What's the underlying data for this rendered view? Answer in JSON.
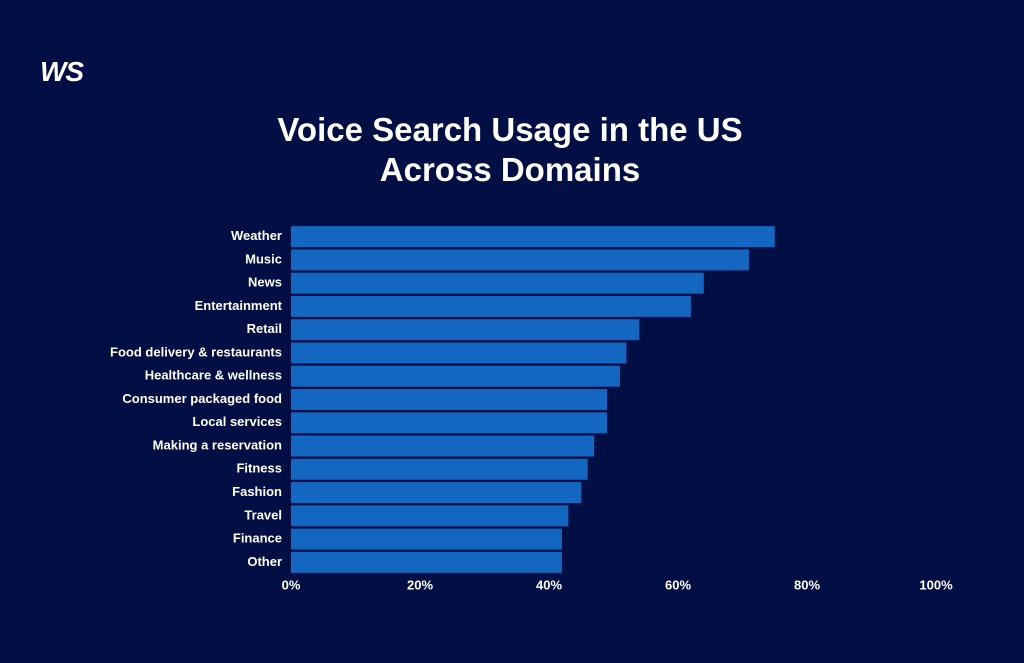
{
  "logo": "WS",
  "chart_data": {
    "type": "bar",
    "orientation": "horizontal",
    "title": "Voice Search Usage in the US Across Domains",
    "categories": [
      "Weather",
      "Music",
      "News",
      "Entertainment",
      "Retail",
      "Food delivery & restaurants",
      "Healthcare & wellness",
      "Consumer packaged food",
      "Local services",
      "Making a reservation",
      "Fitness",
      "Fashion",
      "Travel",
      "Finance",
      "Other"
    ],
    "values": [
      75,
      71,
      64,
      62,
      54,
      52,
      51,
      49,
      49,
      47,
      46,
      45,
      43,
      42,
      42
    ],
    "color": "#1467c0",
    "xlim": [
      0,
      100
    ],
    "xticks": [
      {
        "value": 0,
        "label": "0%"
      },
      {
        "value": 20,
        "label": "20%"
      },
      {
        "value": 40,
        "label": "40%"
      },
      {
        "value": 60,
        "label": "60%"
      },
      {
        "value": 80,
        "label": "80%"
      },
      {
        "value": 100,
        "label": "100%"
      }
    ],
    "grid": false
  }
}
